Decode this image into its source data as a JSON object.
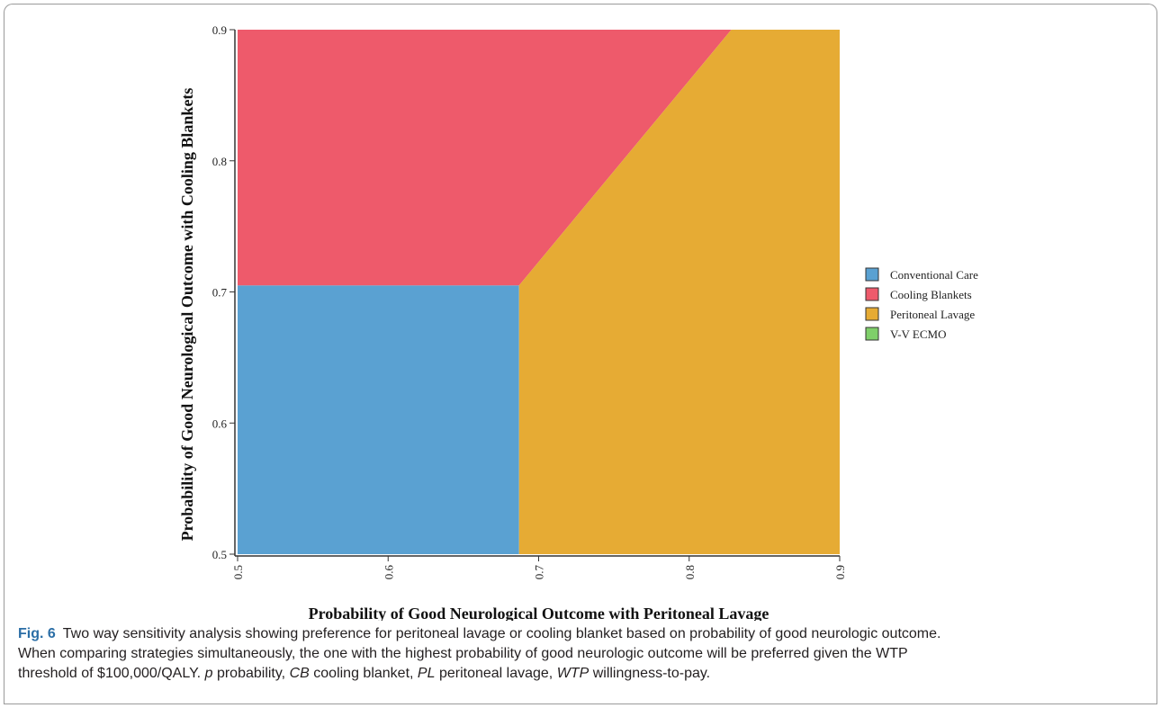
{
  "chart_data": {
    "type": "area",
    "xlabel": "Probability of Good Neurological Outcome with Peritoneal Lavage",
    "ylabel": "Probability of Good Neurological Outcome with Cooling Blankets",
    "xlim": [
      0.5,
      0.9
    ],
    "ylim": [
      0.5,
      0.9
    ],
    "x_ticks": [
      "0.5",
      "0.6",
      "0.7",
      "0.8",
      "0.9"
    ],
    "y_ticks": [
      "0.5",
      "0.6",
      "0.7",
      "0.8",
      "0.9"
    ],
    "legend_position": "right",
    "regions": [
      {
        "name": "Conventional Care",
        "color": "#5aa1d2",
        "polygon": [
          [
            0.5,
            0.5
          ],
          [
            0.687,
            0.5
          ],
          [
            0.687,
            0.705
          ],
          [
            0.5,
            0.705
          ]
        ]
      },
      {
        "name": "Cooling Blankets",
        "color": "#ee5a6b",
        "polygon": [
          [
            0.5,
            0.705
          ],
          [
            0.687,
            0.705
          ],
          [
            0.828,
            0.9
          ],
          [
            0.5,
            0.9
          ]
        ]
      },
      {
        "name": "Peritoneal Lavage",
        "color": "#e6ab34",
        "polygon": [
          [
            0.687,
            0.5
          ],
          [
            0.9,
            0.5
          ],
          [
            0.9,
            0.9
          ],
          [
            0.828,
            0.9
          ],
          [
            0.687,
            0.705
          ]
        ]
      },
      {
        "name": "V-V ECMO",
        "color": "#7fcf6a",
        "polygon": []
      }
    ]
  },
  "caption": {
    "fig_label": "Fig. 6",
    "line1": "Two way sensitivity analysis showing preference for peritoneal lavage or cooling blanket based on probability of good neurologic outcome.",
    "line2": "When comparing strategies simultaneously, the one with the highest probability of good neurologic outcome will be preferred given the WTP",
    "line3_prefix": "threshold of $100,000/QALY.",
    "abbrev_p": "p",
    "def_p": "probability,",
    "abbrev_cb": "CB",
    "def_cb": "cooling blanket,",
    "abbrev_pl": "PL",
    "def_pl": "peritoneal lavage,",
    "abbrev_wtp": "WTP",
    "def_wtp": "willingness-to-pay."
  }
}
